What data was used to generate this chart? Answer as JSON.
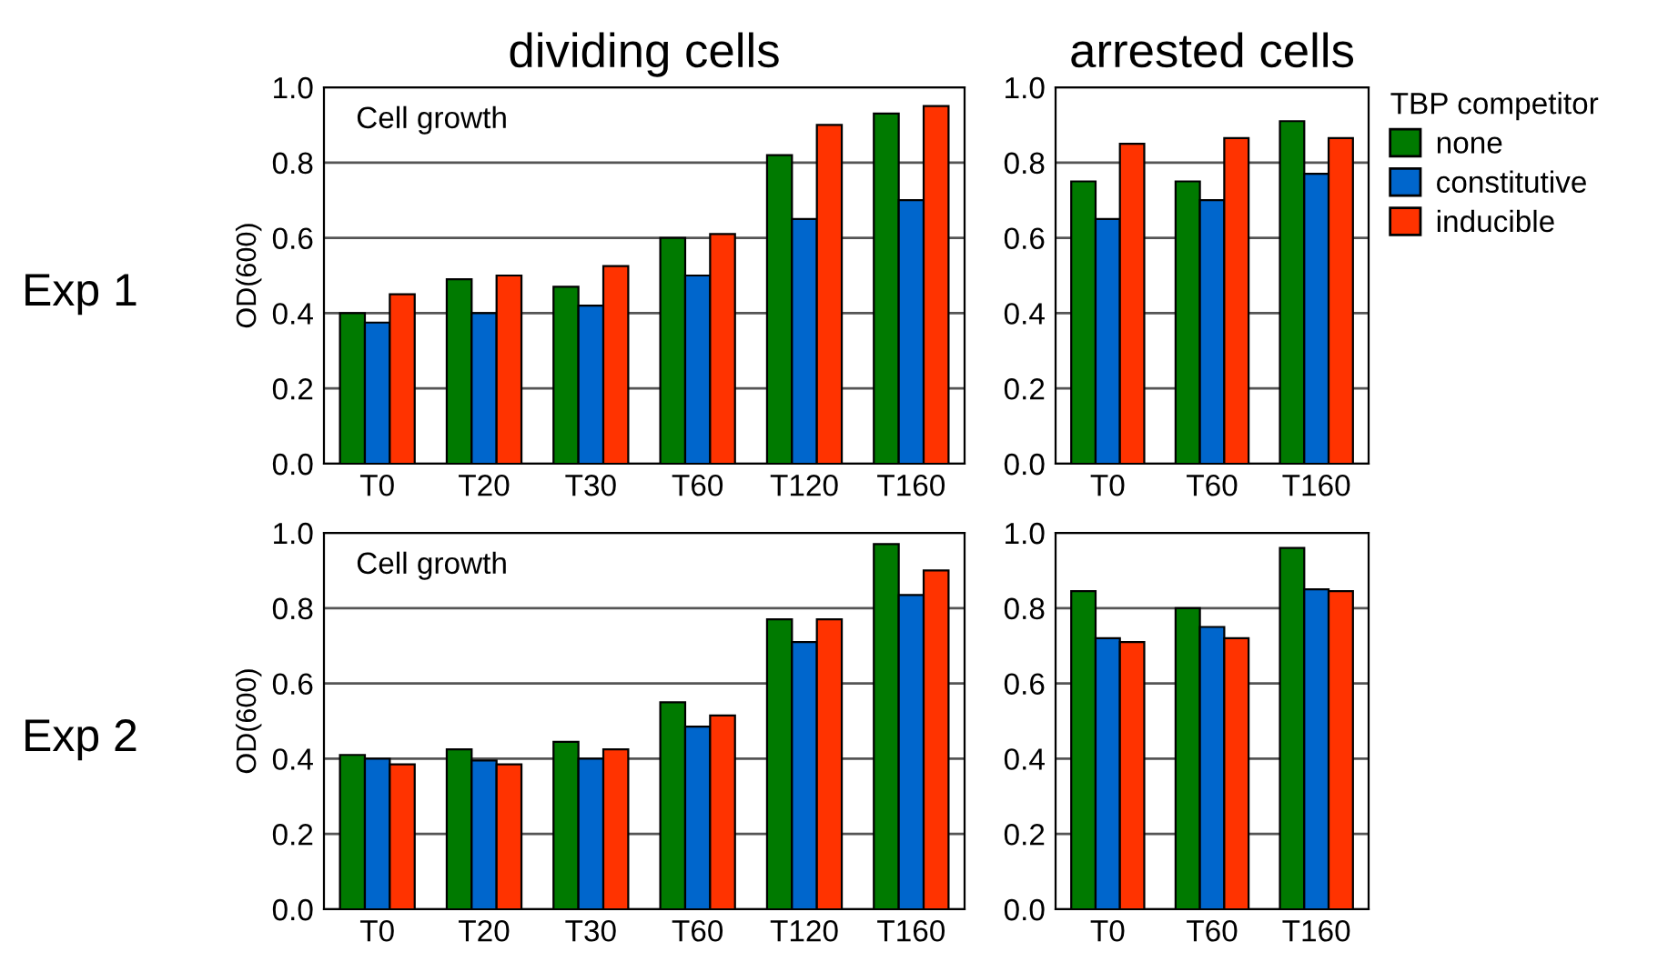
{
  "chart_data": [
    {
      "type": "bar",
      "title": "dividing cells",
      "ylabel": "OD(600)",
      "annotations": [
        "Cell growth",
        "Exp 1"
      ],
      "categories": [
        "T0",
        "T20",
        "T30",
        "T60",
        "T120",
        "T160"
      ],
      "ylim": [
        0,
        1
      ],
      "yticks": [
        {
          "value": 0,
          "label": "0.0"
        },
        {
          "value": 0.2,
          "label": "0.2"
        },
        {
          "value": 0.4,
          "label": "0.4"
        },
        {
          "value": 0.6,
          "label": "0.6"
        },
        {
          "value": 0.8,
          "label": "0.8"
        },
        {
          "value": 1,
          "label": "1.0"
        }
      ],
      "grid": "y",
      "series": [
        {
          "color": "#007a00",
          "values": [
            0.4,
            0.49,
            0.47,
            0.6,
            0.82,
            0.93
          ]
        },
        {
          "color": "#0066cc",
          "values": [
            0.375,
            0.4,
            0.42,
            0.5,
            0.65,
            0.7
          ]
        },
        {
          "color": "#ff3300",
          "values": [
            0.45,
            0.5,
            0.525,
            0.61,
            0.9,
            0.95
          ]
        }
      ]
    },
    {
      "type": "bar",
      "title": "arrested cells",
      "legend_title": "TBP competitor",
      "legend": "right",
      "categories": [
        "T0",
        "T60",
        "T160"
      ],
      "ylim": [
        0,
        1
      ],
      "yticks": [
        {
          "value": 0,
          "label": "0.0"
        },
        {
          "value": 0.2,
          "label": "0.2"
        },
        {
          "value": 0.4,
          "label": "0.4"
        },
        {
          "value": 0.6,
          "label": "0.6"
        },
        {
          "value": 0.8,
          "label": "0.8"
        },
        {
          "value": 1,
          "label": "1.0"
        }
      ],
      "grid": "y",
      "series": [
        {
          "name": "none",
          "color": "#007a00",
          "values": [
            0.75,
            0.75,
            0.91
          ]
        },
        {
          "name": "constitutive",
          "color": "#0066cc",
          "values": [
            0.65,
            0.7,
            0.77
          ]
        },
        {
          "name": "inducible",
          "color": "#ff3300",
          "values": [
            0.85,
            0.865,
            0.865
          ]
        }
      ]
    },
    {
      "type": "bar",
      "ylabel": "OD(600)",
      "annotations": [
        "Cell growth",
        "Exp 2"
      ],
      "categories": [
        "T0",
        "T20",
        "T30",
        "T60",
        "T120",
        "T160"
      ],
      "ylim": [
        0,
        1
      ],
      "yticks": [
        {
          "value": 0,
          "label": "0.0"
        },
        {
          "value": 0.2,
          "label": "0.2"
        },
        {
          "value": 0.4,
          "label": "0.4"
        },
        {
          "value": 0.6,
          "label": "0.6"
        },
        {
          "value": 0.8,
          "label": "0.8"
        },
        {
          "value": 1,
          "label": "1.0"
        }
      ],
      "grid": "y",
      "series": [
        {
          "color": "#007a00",
          "values": [
            0.41,
            0.425,
            0.445,
            0.55,
            0.77,
            0.97
          ]
        },
        {
          "color": "#0066cc",
          "values": [
            0.4,
            0.395,
            0.4,
            0.485,
            0.71,
            0.835
          ]
        },
        {
          "color": "#ff3300",
          "values": [
            0.385,
            0.385,
            0.425,
            0.515,
            0.77,
            0.9
          ]
        }
      ]
    },
    {
      "type": "bar",
      "categories": [
        "T0",
        "T60",
        "T160"
      ],
      "ylim": [
        0,
        1
      ],
      "yticks": [
        {
          "value": 0,
          "label": "0.0"
        },
        {
          "value": 0.2,
          "label": "0.2"
        },
        {
          "value": 0.4,
          "label": "0.4"
        },
        {
          "value": 0.6,
          "label": "0.6"
        },
        {
          "value": 0.8,
          "label": "0.8"
        },
        {
          "value": 1,
          "label": "1.0"
        }
      ],
      "grid": "y",
      "series": [
        {
          "color": "#007a00",
          "values": [
            0.845,
            0.8,
            0.96
          ]
        },
        {
          "color": "#0066cc",
          "values": [
            0.72,
            0.75,
            0.85
          ]
        },
        {
          "color": "#ff3300",
          "values": [
            0.71,
            0.72,
            0.845
          ]
        }
      ]
    }
  ]
}
